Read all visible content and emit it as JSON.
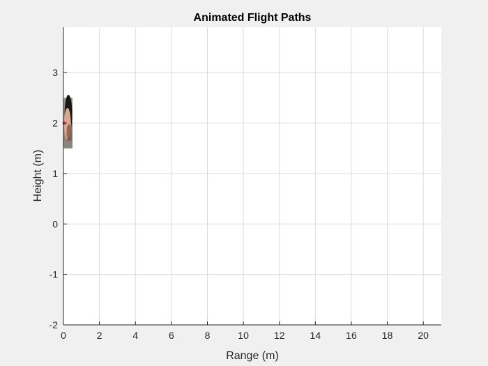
{
  "chart_data": {
    "type": "scatter",
    "title": "Animated Flight Paths",
    "xlabel": "Range (m)",
    "ylabel": "Height (m)",
    "xlim": [
      0,
      21
    ],
    "ylim": [
      -2,
      3.9
    ],
    "xticks": [
      0,
      2,
      4,
      6,
      8,
      10,
      12,
      14,
      16,
      18,
      20
    ],
    "yticks": [
      -2,
      -1,
      0,
      1,
      2,
      3
    ],
    "grid": true,
    "series": [
      {
        "x": [
          0
        ],
        "y": [
          2
        ],
        "color": "#e03030"
      }
    ],
    "image_overlay": {
      "description_icon": "face-photo-icon",
      "x_range": [
        0,
        0.5
      ],
      "y_range": [
        1.5,
        2.5
      ]
    }
  },
  "colors": {
    "figure_bg": "#f0f0f0",
    "axes_bg": "#ffffff",
    "grid": "#dcdcdc",
    "axis": "#262626",
    "marker": "#e03030"
  }
}
